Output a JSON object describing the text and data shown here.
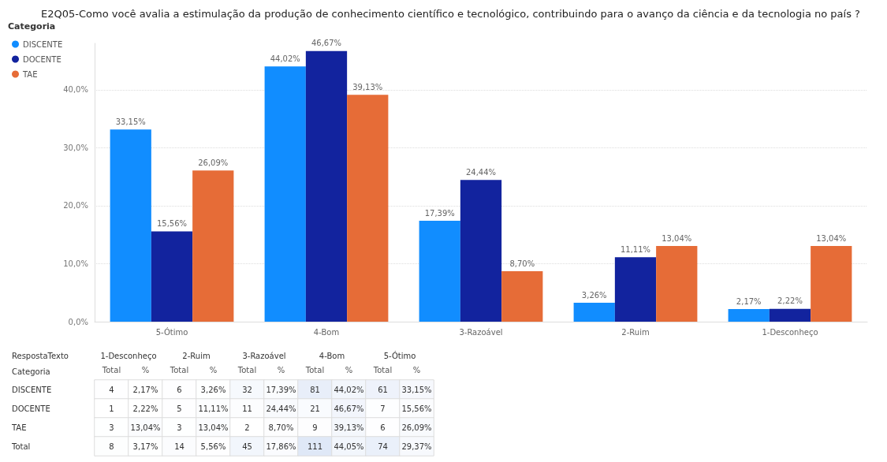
{
  "chart_data": [
    {
      "type": "bar",
      "title": "E2Q05-Como você avalia a estimulação da produção de conhecimento científico e tecnológico, contribuindo para o avanço da ciência e da tecnologia no país ?",
      "legend_title": "Categoria",
      "categories": [
        "5-Ótimo",
        "4-Bom",
        "3-Razoável",
        "2-Ruim",
        "1-Desconheço"
      ],
      "series": [
        {
          "name": "DISCENTE",
          "color": "#118dff",
          "values": [
            33.15,
            44.02,
            17.39,
            3.26,
            2.17
          ],
          "value_labels": [
            "33,15%",
            "44,02%",
            "17,39%",
            "3,26%",
            "2,17%"
          ]
        },
        {
          "name": "DOCENTE",
          "color": "#12239e",
          "values": [
            15.56,
            46.67,
            24.44,
            11.11,
            2.22
          ],
          "value_labels": [
            "15,56%",
            "46,67%",
            "24,44%",
            "11,11%",
            "2,22%"
          ]
        },
        {
          "name": "TAE",
          "color": "#e66c37",
          "values": [
            26.09,
            39.13,
            8.7,
            13.04,
            13.04
          ],
          "value_labels": [
            "26,09%",
            "39,13%",
            "8,70%",
            "13,04%",
            "13,04%"
          ]
        }
      ],
      "ylim": [
        0,
        48
      ],
      "yticks": [
        {
          "value": 0,
          "label": "0,0%"
        },
        {
          "value": 10,
          "label": "10,0%"
        },
        {
          "value": 20,
          "label": "20,0%"
        },
        {
          "value": 30,
          "label": "30,0%"
        },
        {
          "value": 40,
          "label": "40,0%"
        }
      ],
      "grid": "y",
      "legend": "top left"
    },
    {
      "type": "heatmap",
      "annotations": [
        "RespostaTexto",
        "Categoria",
        "1-Desconheço",
        "2-Ruim",
        "3-Razoável",
        "4-Bom",
        "5-Ótimo"
      ],
      "categories": [
        "Total",
        "%",
        "Total",
        "%",
        "Total",
        "%",
        "Total",
        "%",
        "Total",
        "%"
      ],
      "y_categories": [
        "DISCENTE",
        "DOCENTE",
        "TAE",
        "Total"
      ],
      "cells": [
        [
          4,
          2.17,
          6,
          3.26,
          32,
          17.39,
          81,
          44.02,
          61,
          33.15
        ],
        [
          1,
          2.22,
          5,
          11.11,
          11,
          24.44,
          21,
          46.67,
          7,
          15.56
        ],
        [
          3,
          13.04,
          3,
          13.04,
          2,
          8.7,
          9,
          39.13,
          6,
          26.09
        ],
        [
          8,
          3.17,
          14,
          5.56,
          45,
          17.86,
          111,
          44.05,
          74,
          29.37
        ]
      ],
      "cell_labels": [
        [
          "4",
          "2,17%",
          "6",
          "3,26%",
          "32",
          "17,39%",
          "81",
          "44,02%",
          "61",
          "33,15%"
        ],
        [
          "1",
          "2,22%",
          "5",
          "11,11%",
          "11",
          "24,44%",
          "21",
          "46,67%",
          "7",
          "15,56%"
        ],
        [
          "3",
          "13,04%",
          "3",
          "13,04%",
          "2",
          "8,70%",
          "9",
          "39,13%",
          "6",
          "26,09%"
        ],
        [
          "8",
          "3,17%",
          "14",
          "5,56%",
          "45",
          "17,86%",
          "111",
          "44,05%",
          "74",
          "29,37%"
        ]
      ]
    }
  ]
}
